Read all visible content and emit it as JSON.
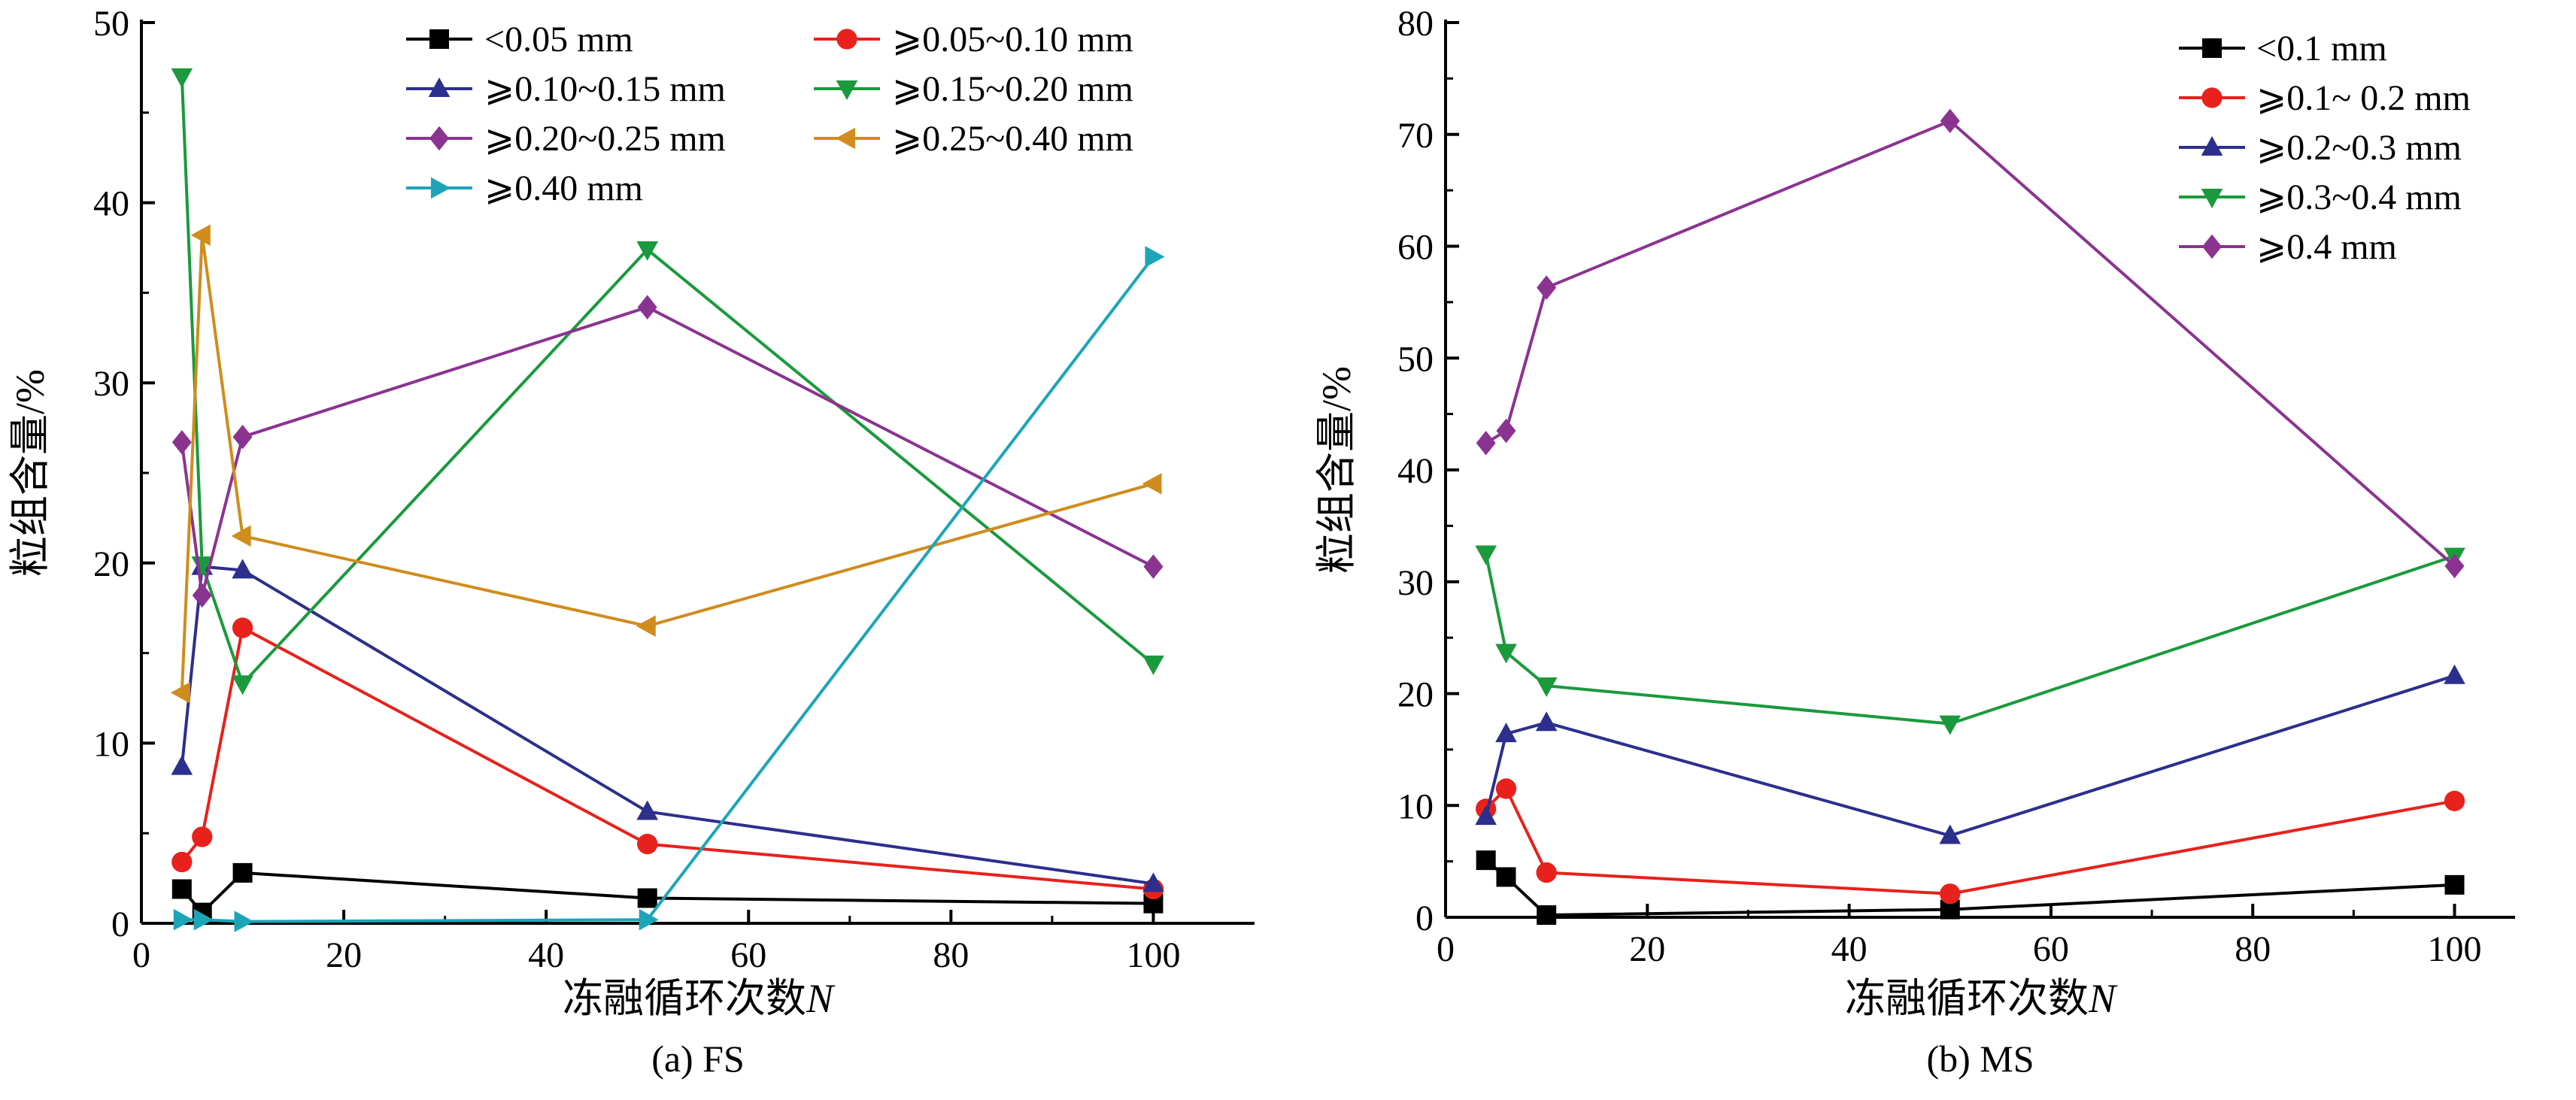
{
  "chart_data": [
    {
      "type": "line",
      "caption": "(a) FS",
      "xlabel": "冻融循环次数",
      "xlabel_italic": "N",
      "ylabel": "粒组含量/%",
      "xlim": [
        0,
        110
      ],
      "ylim": [
        0,
        50
      ],
      "xticks": [
        "0",
        "20",
        "40",
        "60",
        "80",
        "100"
      ],
      "yticks": [
        "0",
        "10",
        "20",
        "30",
        "40",
        "50"
      ],
      "legend_position": "top-right",
      "grid": false,
      "series": [
        {
          "name": "<0.05 mm",
          "color": "#000000",
          "marker": "square",
          "x": [
            4,
            6,
            10,
            50,
            100
          ],
          "y": [
            1.9,
            0.6,
            2.8,
            1.4,
            1.1
          ]
        },
        {
          "name": "⩾0.05~0.10 mm",
          "color": "#e8211c",
          "marker": "circle",
          "x": [
            4,
            6,
            10,
            50,
            100
          ],
          "y": [
            3.4,
            4.8,
            16.4,
            4.4,
            1.9
          ]
        },
        {
          "name": "⩾0.10~0.15 mm",
          "color": "#2c2f8c",
          "marker": "triangle-up",
          "x": [
            4,
            6,
            10,
            50,
            100
          ],
          "y": [
            8.7,
            19.8,
            19.6,
            6.2,
            2.2
          ]
        },
        {
          "name": "⩾0.15~0.20 mm",
          "color": "#1a9a3c",
          "marker": "triangle-down",
          "x": [
            4,
            6,
            10,
            50,
            100
          ],
          "y": [
            47.0,
            19.9,
            13.3,
            37.4,
            14.4
          ]
        },
        {
          "name": "⩾0.20~0.25 mm",
          "color": "#8b3391",
          "marker": "diamond",
          "x": [
            4,
            6,
            10,
            50,
            100
          ],
          "y": [
            26.7,
            18.2,
            27.0,
            34.2,
            19.8
          ]
        },
        {
          "name": "⩾0.25~0.40 mm",
          "color": "#d08c1c",
          "marker": "triangle-left",
          "x": [
            4,
            6,
            10,
            50,
            100
          ],
          "y": [
            12.8,
            38.2,
            21.5,
            16.5,
            24.4
          ]
        },
        {
          "name": "⩾0.40 mm",
          "color": "#1ca5b8",
          "marker": "triangle-right",
          "x": [
            4,
            6,
            10,
            50,
            100
          ],
          "y": [
            0.2,
            0.2,
            0.1,
            0.2,
            37.0
          ]
        }
      ]
    },
    {
      "type": "line",
      "caption": "(b) MS",
      "xlabel": "冻融循环次数",
      "xlabel_italic": "N",
      "ylabel": "粒组含量/%",
      "xlim": [
        0,
        106
      ],
      "ylim": [
        0,
        80
      ],
      "xticks": [
        "0",
        "20",
        "40",
        "60",
        "80",
        "100"
      ],
      "yticks": [
        "0",
        "10",
        "20",
        "30",
        "40",
        "50",
        "60",
        "70",
        "80"
      ],
      "legend_position": "top-right",
      "grid": false,
      "series": [
        {
          "name": "<0.1 mm",
          "color": "#000000",
          "marker": "square",
          "x": [
            4,
            6,
            10,
            50,
            100
          ],
          "y": [
            5.1,
            3.6,
            0.2,
            0.7,
            2.9
          ]
        },
        {
          "name": "⩾0.1~ 0.2 mm",
          "color": "#e8211c",
          "marker": "circle",
          "x": [
            4,
            6,
            10,
            50,
            100
          ],
          "y": [
            9.7,
            11.5,
            4.0,
            2.1,
            10.4
          ]
        },
        {
          "name": "⩾0.2~0.3 mm",
          "color": "#2c2f8c",
          "marker": "triangle-up",
          "x": [
            4,
            6,
            10,
            50,
            100
          ],
          "y": [
            9.0,
            16.4,
            17.4,
            7.3,
            21.6
          ]
        },
        {
          "name": "⩾0.3~0.4 mm",
          "color": "#1a9a3c",
          "marker": "triangle-down",
          "x": [
            4,
            6,
            10,
            50,
            100
          ],
          "y": [
            32.5,
            23.7,
            20.7,
            17.3,
            32.3
          ]
        },
        {
          "name": "⩾0.4 mm",
          "color": "#8b3391",
          "marker": "diamond",
          "x": [
            4,
            6,
            10,
            50,
            100
          ],
          "y": [
            42.4,
            43.5,
            56.3,
            71.2,
            31.4
          ]
        }
      ]
    }
  ]
}
